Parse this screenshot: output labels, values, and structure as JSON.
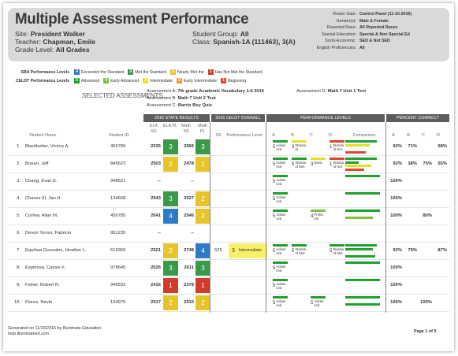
{
  "title": "Multiple Assessment Performance",
  "header": {
    "site_label": "Site:",
    "site": "President Walker",
    "teacher_label": "Teacher:",
    "teacher": "Chapman, Emile",
    "grade_label": "Grade Level:",
    "grade": "All Grades",
    "group_label": "Student Group:",
    "group": "All",
    "class_label": "Class:",
    "class": "Spanish-1A (111463), 3(A)"
  },
  "filters": [
    {
      "label": "Roster Date:",
      "value": "Control Panel (11-10-2016)"
    },
    {
      "label": "Gender(s):",
      "value": "Male & Female"
    },
    {
      "label": "Reported Race:",
      "value": "All Reported Races"
    },
    {
      "label": "Special Education:",
      "value": "Special & Non Special Ed"
    },
    {
      "label": "Socio-Economic:",
      "value": "SED & Not SED"
    },
    {
      "label": "English Proficiencies:",
      "value": "All"
    }
  ],
  "legend": {
    "sba_title": "SBA Performance Levels",
    "sba": [
      {
        "n": "4",
        "label": "Exceeded the Standard",
        "color": "#2f7ac7"
      },
      {
        "n": "3",
        "label": "Met the Standard",
        "color": "#3a9a4a"
      },
      {
        "n": "2",
        "label": "Nearly Met the",
        "color": "#e6c42c"
      },
      {
        "n": "1",
        "label": "Has Not Met the Standard",
        "color": "#d03b2c"
      }
    ],
    "celdt_title": "CELDT Performance Levels",
    "celdt": [
      {
        "n": "5",
        "label": "Advanced",
        "color": "#1fa12f"
      },
      {
        "n": "4",
        "label": "Early Advanced",
        "color": "#7dc13a"
      },
      {
        "n": "3",
        "label": "Intermediate",
        "color": "#e6df26"
      },
      {
        "n": "2",
        "label": "Early Intermediate",
        "color": "#ef9a2a"
      },
      {
        "n": "1",
        "label": "Beginning",
        "color": "#e0452f"
      }
    ]
  },
  "selected": {
    "title": "SELECTED ASSESSMENTS",
    "a_label": "Assessment A:",
    "a": "7th grade Academic Vocabulary 1-6 2016",
    "b_label": "Assessment B:",
    "b": "Math 7 Unit 2 Test",
    "c_label": "Assessment C:",
    "c": "Barrio Boy Quiz",
    "d_label": "Assessment D:",
    "d": "Math 7 Unit 1 Test"
  },
  "table": {
    "groups": [
      "2016 STATE RESULTS",
      "2016 CELDT OVERALL",
      "PERFORMANCE LEVELS",
      "PERCENT CORRECT"
    ],
    "cols": {
      "name": "Student Name",
      "id": "Student ID",
      "ela_ss": "ELA SS",
      "ela_pl": "ELA PL",
      "math_ss": "Math SS",
      "math_pl": "Math PL",
      "celdt_ss": "SS",
      "celdt_pl": "Performance Level",
      "a": "A",
      "b": "B",
      "c": "C",
      "d": "D",
      "comparison": "Comparison",
      "pa": "A",
      "pb": "B",
      "pc": "C",
      "pd": "D"
    },
    "rows": [
      {
        "n": "1.",
        "name": "Blackketter, Victory A.",
        "id": "465789",
        "ela_ss": "2535",
        "ela_pl": "3",
        "math_ss": "2566",
        "math_pl": "3",
        "levels": [
          [
            "#1fa12f",
            "5",
            "Advan ced"
          ],
          [
            "#e6df26",
            "3",
            "Standa rd"
          ],
          null,
          [
            "#e0452f",
            "1",
            "Standa rd Not"
          ]
        ],
        "comparison": [
          "#1fa12f",
          "#e6df26",
          null,
          "#e0452f"
        ],
        "pct": [
          "92%",
          "71%",
          "",
          "58%"
        ]
      },
      {
        "n": "2.",
        "name": "Brauer, Jeff",
        "id": "845623",
        "ela_ss": "2503",
        "ela_pl": "2",
        "math_ss": "2478",
        "math_pl": "2",
        "levels": [
          [
            "#1fa12f",
            "5",
            "Advan ced"
          ],
          [
            "#1fa12f",
            "5",
            "Standa rd Met"
          ],
          [
            "#e6df26",
            "3",
            "Basic"
          ],
          [
            "#e0452f",
            "1",
            "Standa rd Not"
          ]
        ],
        "comparison": [
          "#1fa12f",
          "#1fa12f",
          "#e6df26",
          "#e0452f"
        ],
        "pct": [
          "92%",
          "38%",
          "75%",
          "55%"
        ]
      },
      {
        "n": "3.",
        "name": "Chang, Evan E.",
        "id": "948521",
        "ela_ss": "--",
        "ela_pl": "",
        "math_ss": "--",
        "math_pl": "",
        "levels": [
          [
            "#1fa12f",
            "5",
            "Advan ced"
          ],
          null,
          null,
          null
        ],
        "comparison": [
          "#1fa12f",
          null,
          null,
          null
        ],
        "pct": [
          "100%",
          "",
          "",
          ""
        ]
      },
      {
        "n": "4.",
        "name": "Chavez III, Jan H.",
        "id": "134658",
        "ela_ss": "2543",
        "ela_pl": "3",
        "math_ss": "2527",
        "math_pl": "2",
        "levels": [
          [
            "#1fa12f",
            "5",
            "Advan ced"
          ],
          null,
          null,
          null
        ],
        "comparison": [
          "#1fa12f",
          null,
          null,
          null
        ],
        "pct": [
          "100%",
          "",
          "",
          ""
        ]
      },
      {
        "n": "5.",
        "name": "Corlew, Allan M.",
        "id": "456785",
        "ela_ss": "2641",
        "ela_pl": "4",
        "math_ss": "2546",
        "math_pl": "2",
        "levels": [
          [
            "#1fa12f",
            "5",
            "Advan ced"
          ],
          null,
          [
            "#7dc13a",
            "4",
            "Profici ent"
          ],
          null
        ],
        "comparison": [
          "#1fa12f",
          null,
          "#7dc13a",
          null
        ],
        "pct": [
          "100%",
          "",
          "80%",
          ""
        ]
      },
      {
        "n": "6.",
        "name": "Devon Torres, Fabricio",
        "id": "951235",
        "ela_ss": "--",
        "ela_pl": "",
        "math_ss": "--",
        "math_pl": "",
        "levels": [
          null,
          null,
          null,
          null
        ],
        "comparison": [
          null,
          null,
          null,
          null
        ],
        "pct": [
          "",
          "",
          "",
          ""
        ]
      },
      {
        "n": "7.",
        "name": "Equihua Gonzalez, Heather L.",
        "id": "615359",
        "ela_ss": "2521",
        "ela_pl": "2",
        "math_ss": "2748",
        "math_pl": "4",
        "celdt_ss": "525",
        "celdt_pl_n": "3",
        "celdt_pl": "Intermediate",
        "levels": [
          [
            "#1fa12f",
            "5",
            "Advan ced"
          ],
          [
            "#1fa12f",
            "5",
            "Standa rd Met"
          ],
          null,
          [
            "#1fa12f",
            "5",
            "Standa rd Met"
          ]
        ],
        "comparison": [
          "#1fa12f",
          "#1fa12f",
          null,
          "#1fa12f"
        ],
        "pct": [
          "92%",
          "79%",
          "",
          "87%"
        ]
      },
      {
        "n": "8.",
        "name": "Espinosa, Cassie F.",
        "id": "978645",
        "ela_ss": "2635",
        "ela_pl": "3",
        "math_ss": "2611",
        "math_pl": "3",
        "levels": [
          [
            "#1fa12f",
            "5",
            "Advan ced"
          ],
          null,
          null,
          null
        ],
        "comparison": [
          "#1fa12f",
          null,
          null,
          null
        ],
        "pct": [
          "100%",
          "",
          "",
          ""
        ]
      },
      {
        "n": "9.",
        "name": "Fisher, Robert R.",
        "id": "946532",
        "ela_ss": "2416",
        "ela_pl": "1",
        "math_ss": "2378",
        "math_pl": "1",
        "levels": [
          [
            "#1fa12f",
            "5",
            "Advan ced"
          ],
          null,
          null,
          null
        ],
        "comparison": [
          "#1fa12f",
          null,
          null,
          null
        ],
        "pct": [
          "100%",
          "",
          "",
          ""
        ]
      },
      {
        "n": "10.",
        "name": "Flores, Nevin",
        "id": "164975",
        "ela_ss": "2517",
        "ela_pl": "2",
        "math_ss": "2510",
        "math_pl": "2",
        "levels": [
          [
            "#1fa12f",
            "5",
            "Advan ced"
          ],
          null,
          [
            "#1fa12f",
            "5",
            "Advan ced"
          ],
          null
        ],
        "comparison": [
          "#1fa12f",
          null,
          "#1fa12f",
          null
        ],
        "pct": [
          "100%",
          "",
          "100%",
          ""
        ]
      }
    ]
  },
  "pl_colors": {
    "1": "#d03b2c",
    "2": "#e6c42c",
    "3": "#3a9a4a",
    "4": "#2f7ac7"
  },
  "footer": {
    "generated": "Generated on 11/10/2016 by Illuminate Education",
    "site": "help.illuminateed.com",
    "page": "Page 1 of 5"
  }
}
